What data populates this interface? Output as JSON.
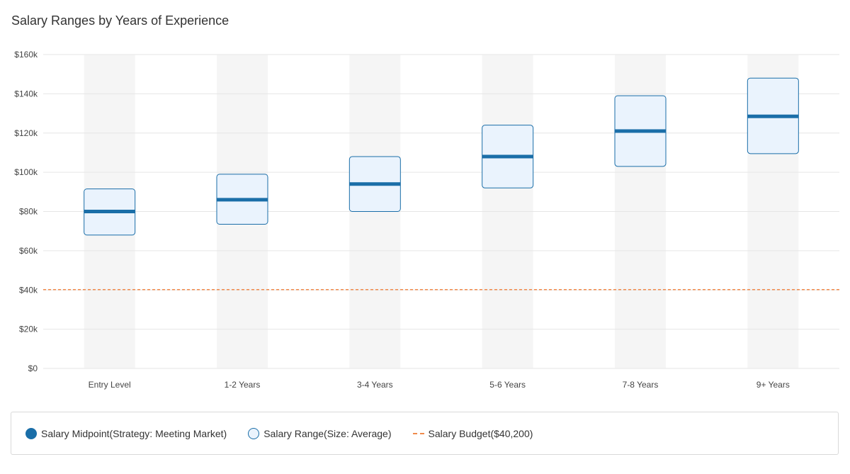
{
  "chart_data": {
    "type": "range-bar",
    "title": "Salary Ranges by Years of Experience",
    "categories": [
      "Entry Level",
      "1-2 Years",
      "3-4 Years",
      "5-6 Years",
      "7-8 Years",
      "9+ Years"
    ],
    "series": [
      {
        "name": "Salary Range(Size: Average)",
        "min": [
          68000,
          73500,
          80000,
          92000,
          103000,
          109500
        ],
        "max": [
          91500,
          99000,
          108000,
          124000,
          139000,
          148000
        ]
      },
      {
        "name": "Salary Midpoint(Strategy: Meeting Market)",
        "values": [
          80000,
          86000,
          94000,
          108000,
          121000,
          128500
        ]
      }
    ],
    "budget": {
      "name": "Salary Budget($40,200)",
      "value": 40200
    },
    "ylim": [
      0,
      160000
    ],
    "yticks": [
      0,
      20000,
      40000,
      60000,
      80000,
      100000,
      120000,
      140000,
      160000
    ],
    "ytick_labels": [
      "$0",
      "$20k",
      "$40k",
      "$60k",
      "$80k",
      "$100k",
      "$120k",
      "$140k",
      "$160k"
    ],
    "grid": true,
    "legend_position": "bottom",
    "colors": {
      "midpoint": "#1a6ea8",
      "range_fill": "#eaf3fd",
      "range_stroke": "#1a6ea8",
      "budget": "#f08a4b",
      "band": "#f5f5f5",
      "grid": "#e6e6e6"
    }
  },
  "legend": {
    "midpoint_label": "Salary Midpoint(Strategy: Meeting Market)",
    "range_label": "Salary Range(Size: Average)",
    "budget_label": "Salary Budget($40,200)"
  }
}
